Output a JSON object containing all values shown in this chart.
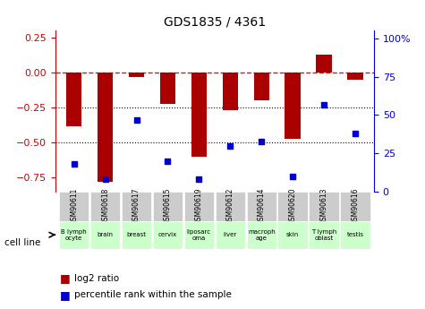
{
  "title": "GDS1835 / 4361",
  "samples": [
    "GSM90611",
    "GSM90618",
    "GSM90617",
    "GSM90615",
    "GSM90619",
    "GSM90612",
    "GSM90614",
    "GSM90620",
    "GSM90613",
    "GSM90616"
  ],
  "cell_lines": [
    "B lymph\nocyte",
    "brain",
    "breast",
    "cervix",
    "liposarc\noma",
    "liver",
    "macroph\nage",
    "skin",
    "T lymph\noblast",
    "testis"
  ],
  "cell_line_colors": [
    "#ccffcc",
    "#ccffcc",
    "#ccffcc",
    "#ccffcc",
    "#ccffcc",
    "#ccffcc",
    "#ccffcc",
    "#ccffcc",
    "#ccffcc",
    "#ccffcc"
  ],
  "log2_ratio": [
    -0.38,
    -0.78,
    -0.03,
    -0.22,
    -0.6,
    -0.27,
    -0.2,
    -0.47,
    0.13,
    -0.05
  ],
  "percentile_rank": [
    18,
    8,
    47,
    20,
    8,
    30,
    33,
    10,
    57,
    38
  ],
  "bar_color": "#aa0000",
  "dot_color": "#0000cc",
  "ylim_left": [
    -0.85,
    0.3
  ],
  "ylim_right": [
    0,
    105
  ],
  "yticks_left": [
    -0.75,
    -0.5,
    -0.25,
    0,
    0.25
  ],
  "yticks_right": [
    0,
    25,
    50,
    75,
    100
  ],
  "hline_y": 0,
  "dotline1": -0.25,
  "dotline2": -0.5,
  "bar_width": 0.5,
  "bg_color": "#ffffff",
  "plot_bg": "#ffffff",
  "legend_log2": "log2 ratio",
  "legend_pct": "percentile rank within the sample",
  "cell_line_label": "cell line",
  "xlabel_color": "#000000",
  "right_axis_color": "#0000cc",
  "left_axis_color": "#cc0000"
}
